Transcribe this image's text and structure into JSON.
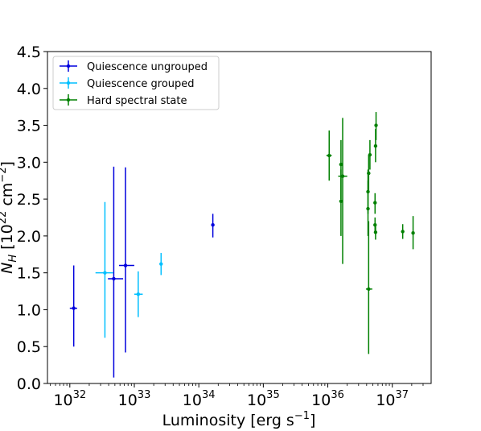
{
  "chart_data": {
    "type": "scatter",
    "xscale": "log",
    "xlabel": "Luminosity [erg s$^{-1}$]",
    "ylabel": "N_H [10^22 cm^-2]",
    "xlim": [
      4.5e+31,
      4e+37
    ],
    "ylim": [
      0.0,
      4.5
    ],
    "x_ticks": [
      {
        "value": 1e+32,
        "base": "10",
        "exp": "32"
      },
      {
        "value": 1e+33,
        "base": "10",
        "exp": "33"
      },
      {
        "value": 1e+34,
        "base": "10",
        "exp": "34"
      },
      {
        "value": 1e+35,
        "base": "10",
        "exp": "35"
      },
      {
        "value": 1e+36,
        "base": "10",
        "exp": "36"
      },
      {
        "value": 1e+37,
        "base": "10",
        "exp": "37"
      }
    ],
    "y_ticks": [
      "0.0",
      "0.5",
      "1.0",
      "1.5",
      "2.0",
      "2.5",
      "3.0",
      "3.5",
      "4.0",
      "4.5"
    ],
    "legend": {
      "placement": "top-left"
    },
    "grid": false,
    "series": [
      {
        "name": "Quiescence ungrouped",
        "color": "#0000dd",
        "points": [
          {
            "x": 1.15e+32,
            "y": 1.02,
            "xlo": 1e+32,
            "xhi": 1.3e+32,
            "ylo": 0.5,
            "yhi": 1.6
          },
          {
            "x": 4.8e+32,
            "y": 1.42,
            "xlo": 3.9e+32,
            "xhi": 6.7e+32,
            "ylo": 0.08,
            "yhi": 2.94
          },
          {
            "x": 7.3e+32,
            "y": 1.6,
            "xlo": 5.8e+32,
            "xhi": 1e+33,
            "ylo": 0.42,
            "yhi": 2.93
          },
          {
            "x": 1.65e+34,
            "y": 2.15,
            "xlo": 1.6e+34,
            "xhi": 1.7e+34,
            "ylo": 1.98,
            "yhi": 2.3
          }
        ]
      },
      {
        "name": "Quiescence grouped",
        "color": "#00bfff",
        "points": [
          {
            "x": 3.5e+32,
            "y": 1.5,
            "xlo": 2.5e+32,
            "xhi": 4.7e+32,
            "ylo": 0.62,
            "yhi": 2.46
          },
          {
            "x": 1.15e+33,
            "y": 1.21,
            "xlo": 1e+33,
            "xhi": 1.35e+33,
            "ylo": 0.9,
            "yhi": 1.52
          },
          {
            "x": 2.6e+33,
            "y": 1.62,
            "xlo": 2.5e+33,
            "xhi": 2.7e+33,
            "ylo": 1.47,
            "yhi": 1.77
          }
        ]
      },
      {
        "name": "Hard spectral state",
        "color": "#008000",
        "points": [
          {
            "x": 1.05e+36,
            "y": 3.09,
            "xlo": 9.5e+35,
            "xhi": 1.15e+36,
            "ylo": 2.75,
            "yhi": 3.43
          },
          {
            "x": 1.6e+36,
            "y": 2.97,
            "xlo": 1.55e+36,
            "xhi": 1.65e+36,
            "ylo": 2.5,
            "yhi": 3.3
          },
          {
            "x": 1.7e+36,
            "y": 2.81,
            "xlo": 1.45e+36,
            "xhi": 2e+36,
            "ylo": 1.62,
            "yhi": 3.6
          },
          {
            "x": 1.6e+36,
            "y": 2.47,
            "xlo": 1.58e+36,
            "xhi": 1.62e+36,
            "ylo": 2.0,
            "yhi": 2.9
          },
          {
            "x": 4.5e+36,
            "y": 3.1,
            "xlo": 4.4e+36,
            "xhi": 4.6e+36,
            "ylo": 2.9,
            "yhi": 3.3
          },
          {
            "x": 4.3e+36,
            "y": 2.85,
            "xlo": 4.25e+36,
            "xhi": 4.35e+36,
            "ylo": 2.6,
            "yhi": 3.1
          },
          {
            "x": 4.2e+36,
            "y": 2.6,
            "xlo": 4.15e+36,
            "xhi": 4.25e+36,
            "ylo": 2.3,
            "yhi": 2.9
          },
          {
            "x": 4.2e+36,
            "y": 2.37,
            "xlo": 4.15e+36,
            "xhi": 4.25e+36,
            "ylo": 2.0,
            "yhi": 2.75
          },
          {
            "x": 4.3e+36,
            "y": 1.28,
            "xlo": 3.9e+36,
            "xhi": 4.9e+36,
            "ylo": 0.4,
            "yhi": 2.2
          },
          {
            "x": 5.6e+36,
            "y": 3.5,
            "xlo": 5.5e+36,
            "xhi": 5.7e+36,
            "ylo": 3.3,
            "yhi": 3.68
          },
          {
            "x": 5.5e+36,
            "y": 3.22,
            "xlo": 5.45e+36,
            "xhi": 5.55e+36,
            "ylo": 3.0,
            "yhi": 3.45
          },
          {
            "x": 5.4e+36,
            "y": 2.45,
            "xlo": 5.35e+36,
            "xhi": 5.45e+36,
            "ylo": 2.3,
            "yhi": 2.58
          },
          {
            "x": 5.4e+36,
            "y": 2.15,
            "xlo": 5.35e+36,
            "xhi": 5.45e+36,
            "ylo": 2.05,
            "yhi": 2.25
          },
          {
            "x": 5.5e+36,
            "y": 2.05,
            "xlo": 5.45e+36,
            "xhi": 5.55e+36,
            "ylo": 1.95,
            "yhi": 2.15
          },
          {
            "x": 1.45e+37,
            "y": 2.06,
            "xlo": 1.4e+37,
            "xhi": 1.5e+37,
            "ylo": 1.96,
            "yhi": 2.16
          },
          {
            "x": 2.1e+37,
            "y": 2.04,
            "xlo": 2e+37,
            "xhi": 2.2e+37,
            "ylo": 1.82,
            "yhi": 2.27
          }
        ]
      }
    ]
  }
}
